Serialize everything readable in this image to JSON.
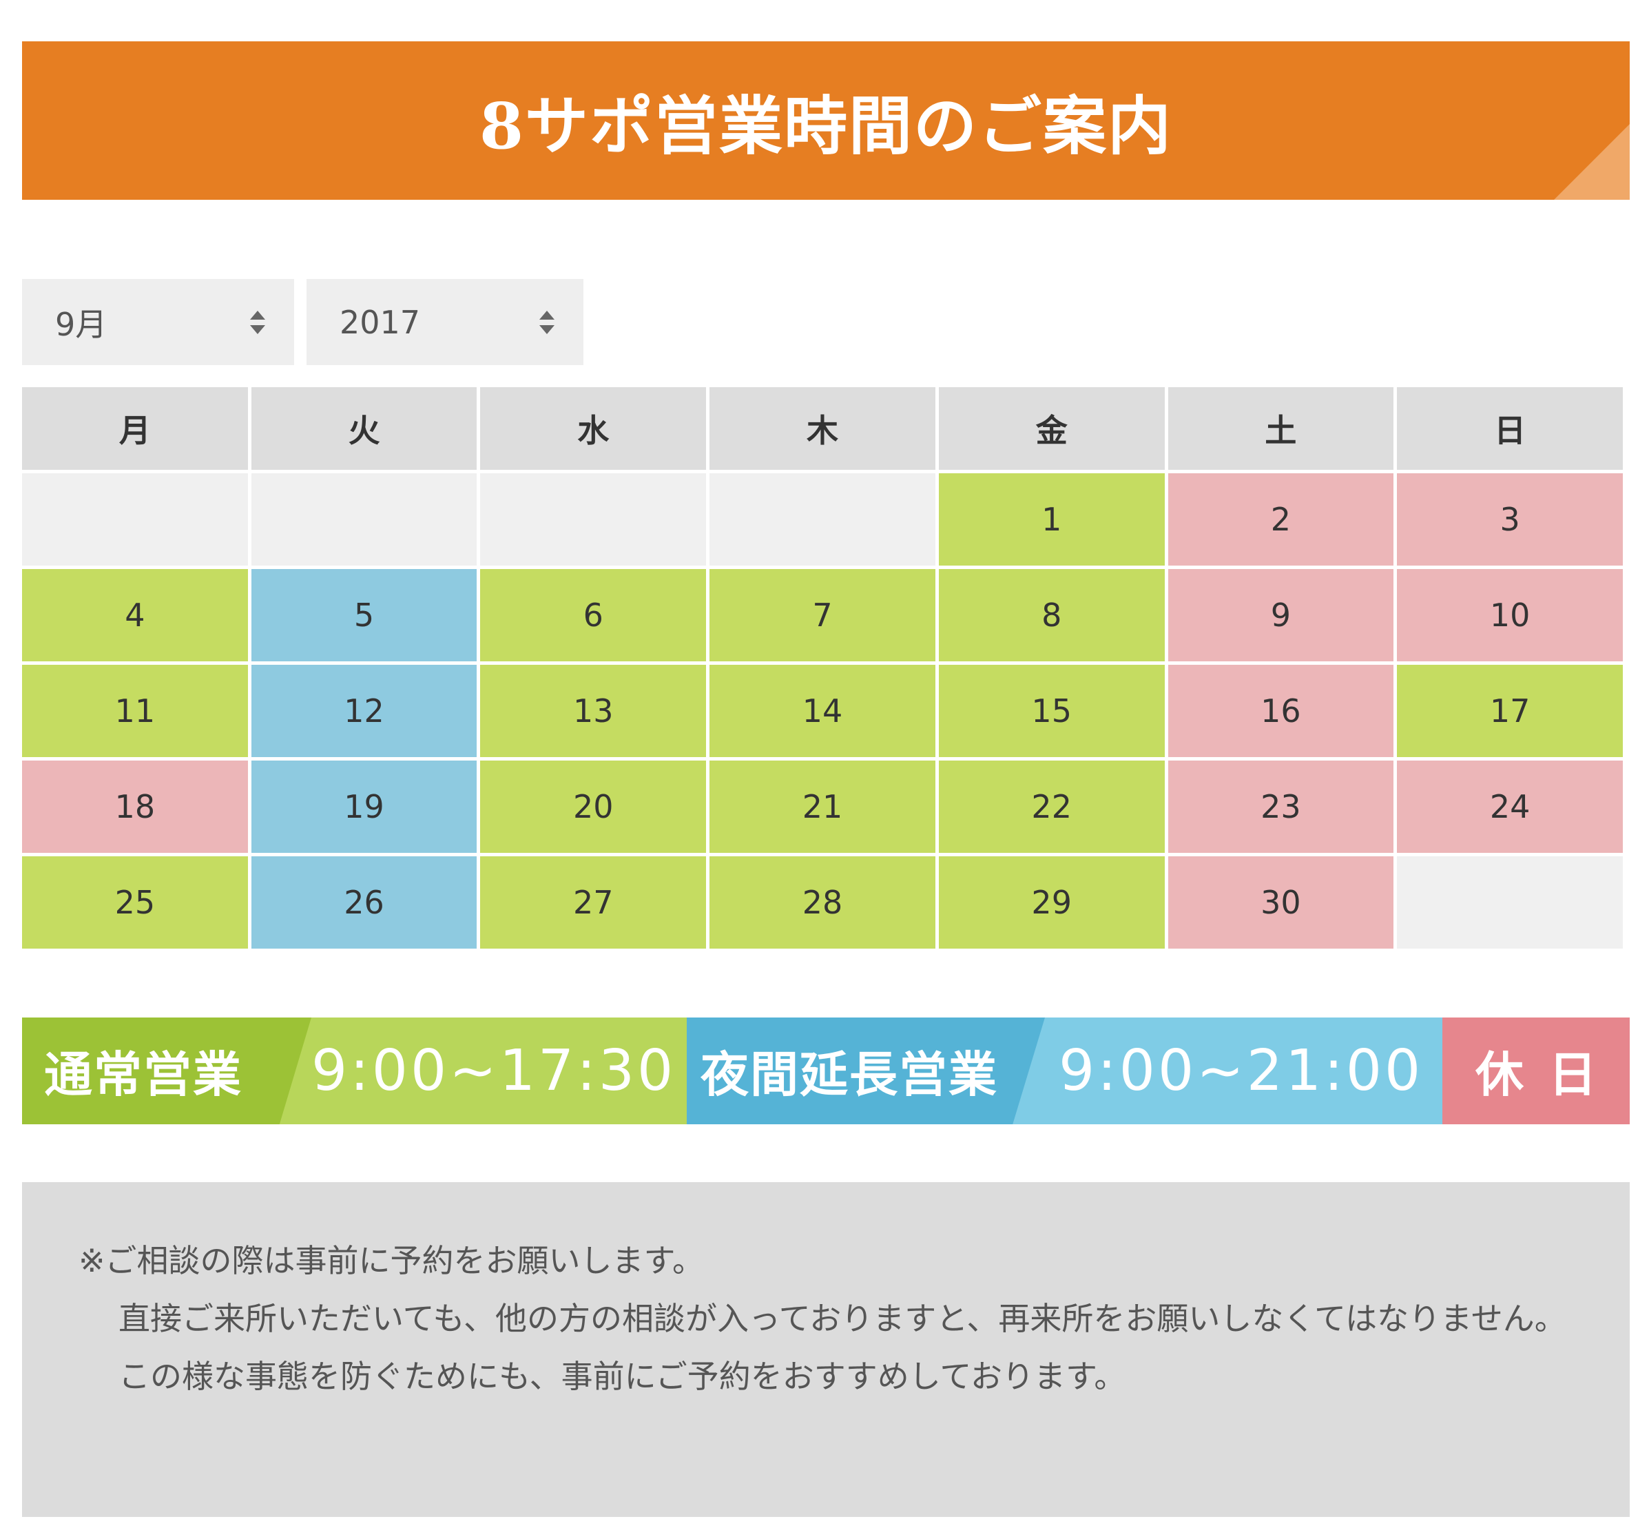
{
  "header": {
    "title": "8サポ営業時間のご案内"
  },
  "selectors": {
    "month": "9月",
    "year": "2017"
  },
  "calendar": {
    "weekdays": [
      "月",
      "火",
      "水",
      "木",
      "金",
      "土",
      "日"
    ],
    "cells": [
      {
        "day": "",
        "type": "empty"
      },
      {
        "day": "",
        "type": "empty"
      },
      {
        "day": "",
        "type": "empty"
      },
      {
        "day": "",
        "type": "empty"
      },
      {
        "day": "1",
        "type": "normal"
      },
      {
        "day": "2",
        "type": "holiday"
      },
      {
        "day": "3",
        "type": "holiday"
      },
      {
        "day": "4",
        "type": "normal"
      },
      {
        "day": "5",
        "type": "extended"
      },
      {
        "day": "6",
        "type": "normal"
      },
      {
        "day": "7",
        "type": "normal"
      },
      {
        "day": "8",
        "type": "normal"
      },
      {
        "day": "9",
        "type": "holiday"
      },
      {
        "day": "10",
        "type": "holiday"
      },
      {
        "day": "11",
        "type": "normal"
      },
      {
        "day": "12",
        "type": "extended"
      },
      {
        "day": "13",
        "type": "normal"
      },
      {
        "day": "14",
        "type": "normal"
      },
      {
        "day": "15",
        "type": "normal"
      },
      {
        "day": "16",
        "type": "holiday"
      },
      {
        "day": "17",
        "type": "normal"
      },
      {
        "day": "18",
        "type": "holiday"
      },
      {
        "day": "19",
        "type": "extended"
      },
      {
        "day": "20",
        "type": "normal"
      },
      {
        "day": "21",
        "type": "normal"
      },
      {
        "day": "22",
        "type": "normal"
      },
      {
        "day": "23",
        "type": "holiday"
      },
      {
        "day": "24",
        "type": "holiday"
      },
      {
        "day": "25",
        "type": "normal"
      },
      {
        "day": "26",
        "type": "extended"
      },
      {
        "day": "27",
        "type": "normal"
      },
      {
        "day": "28",
        "type": "normal"
      },
      {
        "day": "29",
        "type": "normal"
      },
      {
        "day": "30",
        "type": "holiday"
      },
      {
        "day": "",
        "type": "empty"
      }
    ]
  },
  "legend": {
    "normal": {
      "label": "通常営業",
      "time": "9:00~17:30"
    },
    "extended": {
      "label": "夜間延長営業",
      "time": "9:00~21:00"
    },
    "holiday": {
      "label": "休日"
    }
  },
  "note": {
    "line1": "※ご相談の際は事前に予約をお願いします。",
    "body": "直接ご来所いただいても、他の方の相談が入っておりますと、再来所をお願いしなくてはなりません。この様な事態を防ぐためにも、事前にご予約をおすすめしております。"
  },
  "colors": {
    "banner": "#e67e22",
    "normal": "#c5dc61",
    "extended": "#8ecae0",
    "holiday": "#ecb6b8",
    "empty": "#f0f0f0"
  }
}
